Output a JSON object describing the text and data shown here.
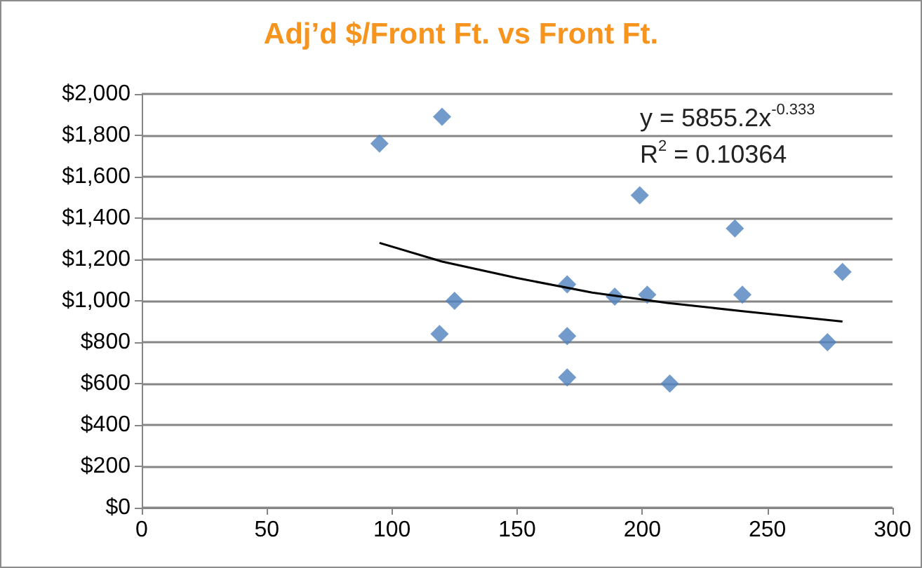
{
  "chart_data": {
    "type": "scatter",
    "title": "Adj’d $/Front Ft. vs Front Ft.",
    "series": [
      {
        "color": "#4f81bd",
        "marker": "diamond",
        "x": [
          95,
          120,
          125,
          119,
          170,
          170,
          170,
          189,
          199,
          202,
          211,
          237,
          240,
          274,
          280
        ],
        "values": [
          1760,
          1890,
          1000,
          840,
          1080,
          830,
          630,
          1020,
          1510,
          1030,
          600,
          1350,
          1030,
          800,
          1140
        ]
      },
      {
        "type": "line",
        "color": "#000000",
        "marker": "none",
        "x": [
          95,
          120,
          150,
          180,
          210,
          240,
          280
        ],
        "values": [
          1280,
          1190,
          1110,
          1040,
          990,
          950,
          900
        ]
      }
    ],
    "xlim": [
      0,
      300
    ],
    "xticks": [
      0,
      50,
      100,
      150,
      200,
      250,
      300
    ],
    "ylim": [
      0,
      2000
    ],
    "yticks": [
      {
        "value": 0,
        "label": "$0"
      },
      {
        "value": 200,
        "label": "$200"
      },
      {
        "value": 400,
        "label": "$400"
      },
      {
        "value": 600,
        "label": "$600"
      },
      {
        "value": 800,
        "label": "$800"
      },
      {
        "value": 1000,
        "label": "$1,000"
      },
      {
        "value": 1200,
        "label": "$1,200"
      },
      {
        "value": 1400,
        "label": "$1,400"
      },
      {
        "value": 1600,
        "label": "$1,600"
      },
      {
        "value": 1800,
        "label": "$1,800"
      },
      {
        "value": 2000,
        "label": "$2,000"
      }
    ],
    "annotations": [
      "y = 5855.2x$^{-0.333}$",
      "R$^{2}$ = 0.10364"
    ],
    "grid": "y"
  }
}
